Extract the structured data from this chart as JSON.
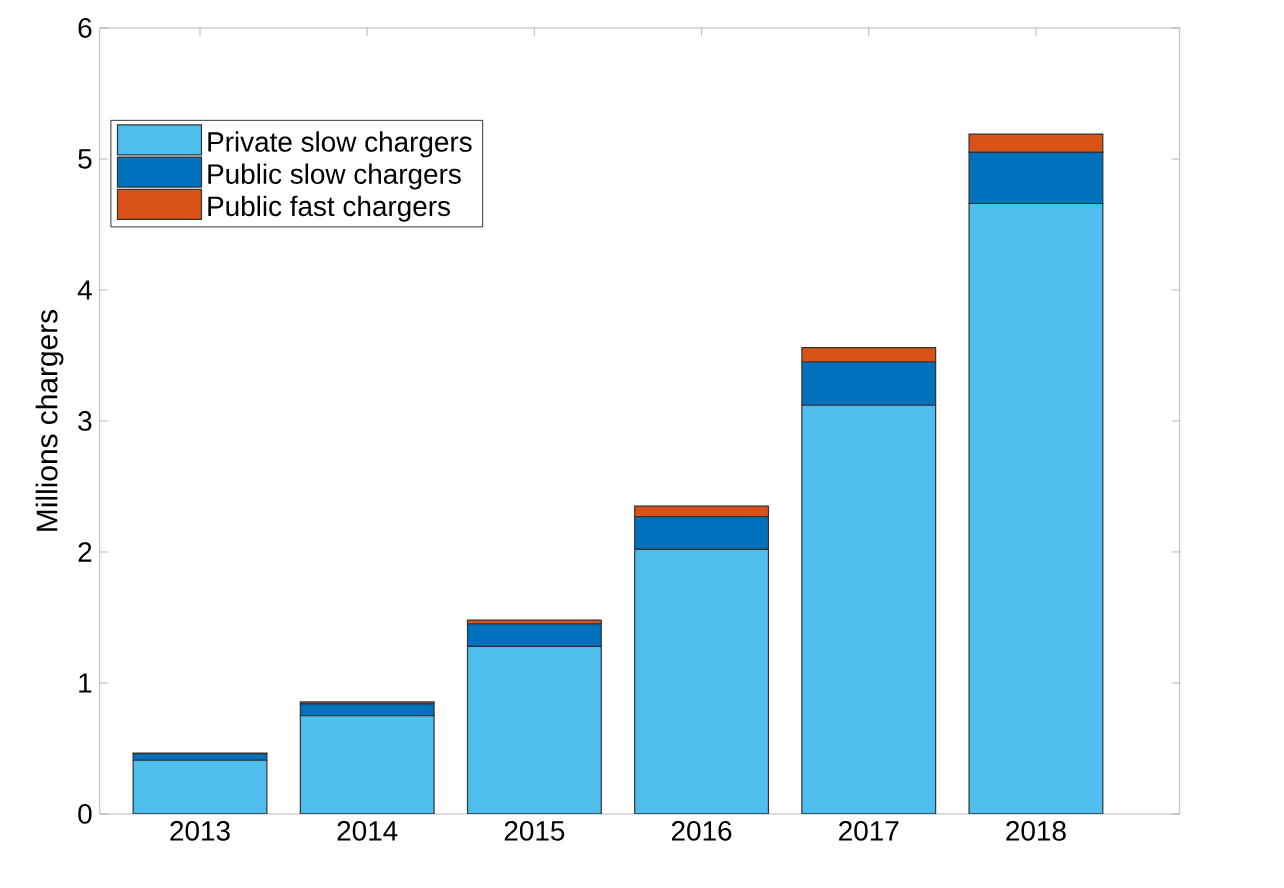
{
  "chart_data": {
    "type": "bar",
    "stacked": true,
    "ylabel": "Millions chargers",
    "categories": [
      "2013",
      "2014",
      "2015",
      "2016",
      "2017",
      "2018"
    ],
    "series": [
      {
        "name": "Private slow chargers",
        "color": "#4dbeee",
        "values": [
          0.41,
          0.75,
          1.28,
          2.02,
          3.12,
          4.66
        ]
      },
      {
        "name": "Public slow chargers",
        "color": "#0072bd",
        "values": [
          0.05,
          0.09,
          0.17,
          0.25,
          0.33,
          0.39
        ]
      },
      {
        "name": "Public fast chargers",
        "color": "#d95319",
        "values": [
          0.005,
          0.015,
          0.03,
          0.08,
          0.11,
          0.14
        ]
      }
    ],
    "ylim": [
      0,
      6
    ],
    "yticks": [
      0,
      1,
      2,
      3,
      4,
      5,
      6
    ],
    "legend": "top left",
    "grid": false
  }
}
